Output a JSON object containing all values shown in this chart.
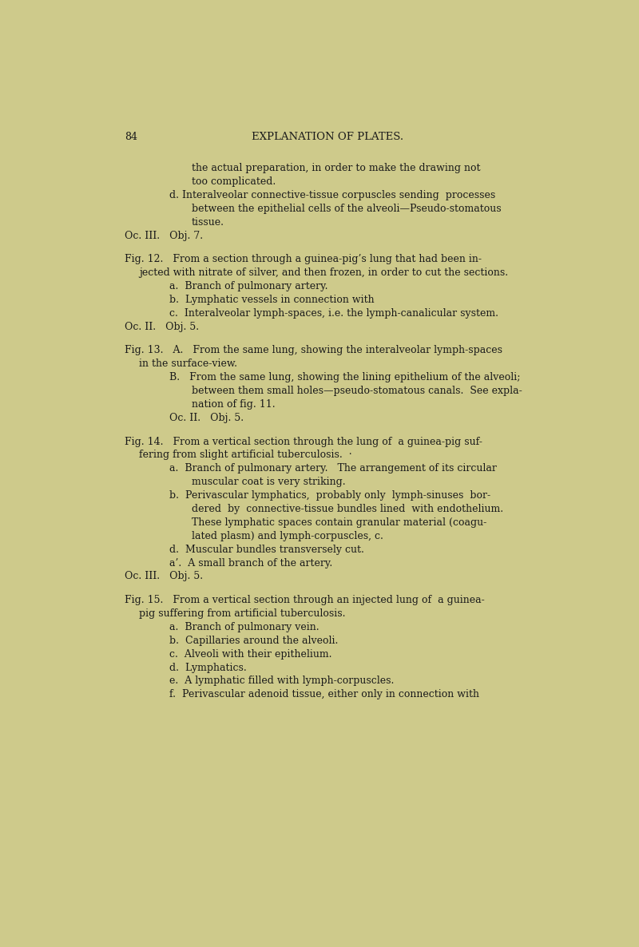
{
  "background_color": "#ceca8b",
  "text_color": "#1a1a1a",
  "page_number": "84",
  "heading": "EXPLANATION OF PLATES.",
  "figsize": [
    8.0,
    11.86
  ],
  "dpi": 100,
  "lines": [
    {
      "indent": 2,
      "text": "the actual preparation, in order to make the drawing not",
      "style": "normal"
    },
    {
      "indent": 2,
      "text": "too complicated.",
      "style": "normal"
    },
    {
      "indent": 1,
      "text": "d. Interalveolar connective-tissue corpuscles sending  processes",
      "style": "normal"
    },
    {
      "indent": 2,
      "text": "between the epithelial cells of the alveoli—Pseudo-stomatous",
      "style": "normal"
    },
    {
      "indent": 2,
      "text": "tissue.",
      "style": "normal"
    },
    {
      "indent": 0,
      "text": "Oc. III.   Obj. 7.  ",
      "style": "normal"
    },
    {
      "indent": -1,
      "text": "",
      "style": "blank"
    },
    {
      "indent": 0,
      "text": "Fig. 12.   From a section through a guinea-pig’s lung that had been in-",
      "style": "fig"
    },
    {
      "indent": 0.5,
      "text": "jected with nitrate of silver, and then frozen, in order to cut the sections.",
      "style": "normal"
    },
    {
      "indent": 1,
      "text": "a.  Branch of pulmonary artery.",
      "style": "normal"
    },
    {
      "indent": 1,
      "text": "b.  Lymphatic vessels in connection with",
      "style": "normal"
    },
    {
      "indent": 1,
      "text": "c.  Interalveolar lymph-spaces, i.e. the lymph-canalicular system.",
      "style": "normal"
    },
    {
      "indent": 0,
      "text": "Oc. II.   Obj. 5.",
      "style": "normal"
    },
    {
      "indent": -1,
      "text": "",
      "style": "blank"
    },
    {
      "indent": 0,
      "text": "Fig. 13.   A.   From the same lung, showing the interalveolar lymph-spaces",
      "style": "fig"
    },
    {
      "indent": 0.5,
      "text": "in the surface-view.",
      "style": "normal"
    },
    {
      "indent": 1,
      "text": "B.   From the same lung, showing the lining epithelium of the alveoli;",
      "style": "normal"
    },
    {
      "indent": 2,
      "text": "between them small holes—pseudo-stomatous canals.  See expla-",
      "style": "normal"
    },
    {
      "indent": 2,
      "text": "nation of fig. 11.",
      "style": "normal"
    },
    {
      "indent": 1,
      "text": "Oc. II.   Obj. 5.",
      "style": "normal"
    },
    {
      "indent": -1,
      "text": "",
      "style": "blank"
    },
    {
      "indent": 0,
      "text": "Fig. 14.   From a vertical section through the lung of  a guinea-pig suf-",
      "style": "fig"
    },
    {
      "indent": 0.5,
      "text": "fering from slight artificial tuberculosis.  ·",
      "style": "normal"
    },
    {
      "indent": 1,
      "text": "a.  Branch of pulmonary artery.   The arrangement of its circular",
      "style": "normal"
    },
    {
      "indent": 2,
      "text": "muscular coat is very striking.",
      "style": "normal"
    },
    {
      "indent": 1,
      "text": "b.  Perivascular lymphatics,  probably only  lymph-sinuses  bor-",
      "style": "normal"
    },
    {
      "indent": 2,
      "text": "dered  by  connective-tissue bundles lined  with endothelium.",
      "style": "normal"
    },
    {
      "indent": 2,
      "text": "These lymphatic spaces contain granular material (coagu-",
      "style": "normal"
    },
    {
      "indent": 2,
      "text": "lated plasm) and lymph-corpuscles, c.",
      "style": "normal"
    },
    {
      "indent": 1,
      "text": "d.  Muscular bundles transversely cut.",
      "style": "normal"
    },
    {
      "indent": 1,
      "text": "a’.  A small branch of the artery.",
      "style": "normal"
    },
    {
      "indent": 0,
      "text": "Oc. III.   Obj. 5.",
      "style": "normal"
    },
    {
      "indent": -1,
      "text": "",
      "style": "blank"
    },
    {
      "indent": 0,
      "text": "Fig. 15.   From a vertical section through an injected lung of  a guinea-",
      "style": "fig"
    },
    {
      "indent": 0.5,
      "text": "pig suffering from artificial tuberculosis.",
      "style": "normal"
    },
    {
      "indent": 1,
      "text": "a.  Branch of pulmonary vein.",
      "style": "normal"
    },
    {
      "indent": 1,
      "text": "b.  Capillaries around the alveoli.",
      "style": "normal"
    },
    {
      "indent": 1,
      "text": "c.  Alveoli with their epithelium.",
      "style": "normal"
    },
    {
      "indent": 1,
      "text": "d.  Lymphatics.",
      "style": "normal"
    },
    {
      "indent": 1,
      "text": "e.  A lymphatic filled with lymph-corpuscles.",
      "style": "normal"
    },
    {
      "indent": 1,
      "text": "f.  Perivascular adenoid tissue, either only in connection with",
      "style": "normal"
    }
  ]
}
